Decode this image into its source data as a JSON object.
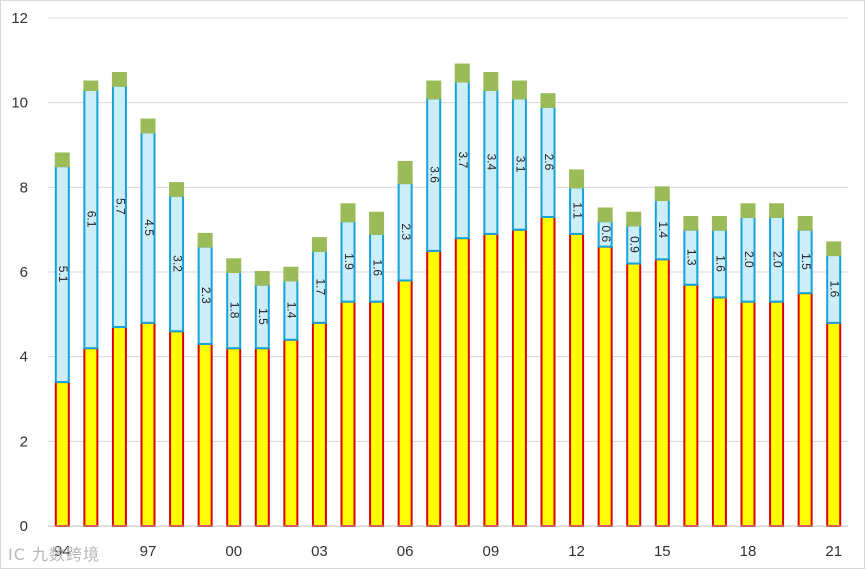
{
  "chart_data": {
    "type": "bar",
    "stacked": true,
    "title": "",
    "xlabel": "",
    "ylabel": "",
    "ylim": [
      0,
      12
    ],
    "yticks": [
      0,
      2,
      4,
      6,
      8,
      10,
      12
    ],
    "grid": true,
    "categories": [
      "94",
      "95",
      "96",
      "97",
      "98",
      "99",
      "00",
      "01",
      "02",
      "03",
      "04",
      "05",
      "06",
      "07",
      "08",
      "09",
      "10",
      "11",
      "12",
      "13",
      "14",
      "15",
      "16",
      "17",
      "18",
      "19",
      "20",
      "21"
    ],
    "xtick_labels": [
      "94",
      "97",
      "00",
      "03",
      "06",
      "09",
      "12",
      "15",
      "18",
      "21"
    ],
    "series": [
      {
        "name": "base",
        "fill": "#ffff00",
        "stroke": "#e00000",
        "values": [
          3.4,
          4.2,
          4.7,
          4.8,
          4.6,
          4.3,
          4.2,
          4.2,
          4.4,
          4.8,
          5.3,
          5.3,
          5.8,
          6.5,
          6.8,
          6.9,
          7.0,
          7.3,
          6.9,
          6.6,
          6.2,
          6.3,
          5.7,
          5.4,
          5.3,
          5.3,
          5.5,
          4.8
        ]
      },
      {
        "name": "middle",
        "fill": "#cdeef9",
        "stroke": "#16a2db",
        "values": [
          5.1,
          6.1,
          5.7,
          4.5,
          3.2,
          2.3,
          1.8,
          1.5,
          1.4,
          1.7,
          1.9,
          1.6,
          2.3,
          3.6,
          3.7,
          3.4,
          3.1,
          2.6,
          1.1,
          0.6,
          0.9,
          1.4,
          1.3,
          1.6,
          2.0,
          2.0,
          1.5,
          1.6
        ]
      },
      {
        "name": "top",
        "fill": "#9bbb59",
        "stroke": "#9bbb59",
        "values": [
          0.3,
          0.2,
          0.3,
          0.3,
          0.3,
          0.3,
          0.3,
          0.3,
          0.3,
          0.3,
          0.4,
          0.5,
          0.5,
          0.4,
          0.4,
          0.4,
          0.4,
          0.3,
          0.4,
          0.3,
          0.3,
          0.3,
          0.3,
          0.3,
          0.3,
          0.3,
          0.3,
          0.3
        ]
      }
    ],
    "data_labels": [
      "5.1",
      "6.1",
      "5.7",
      "4.5",
      "3.2",
      "2.3",
      "1.8",
      "1.5",
      "1.4",
      "1.7",
      "1.9",
      "1.6",
      "2.3",
      "3.6",
      "3.7",
      "3.4",
      "3.1",
      "2.6",
      "1.1",
      "0.6",
      "0.9",
      "1.4",
      "1.3",
      "1.6",
      "2.0",
      "2.0",
      "1.5",
      "1.6"
    ]
  },
  "watermark": "IC 九数跨境"
}
